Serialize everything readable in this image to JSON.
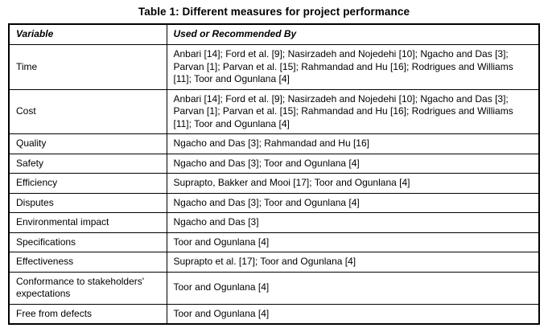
{
  "title": "Table 1: Different measures for project performance",
  "table": {
    "headers": [
      "Variable",
      "Used or Recommended By"
    ],
    "rows": [
      {
        "variable": "Time",
        "sources": "Anbari [14]; Ford et al. [9]; Nasirzadeh and Nojedehi [10]; Ngacho and Das [3]; Parvan [1]; Parvan et al. [15]; Rahmandad and Hu [16]; Rodrigues and Williams [11]; Toor and Ogunlana [4]"
      },
      {
        "variable": "Cost",
        "sources": "Anbari [14]; Ford et al. [9]; Nasirzadeh and Nojedehi [10]; Ngacho and Das [3]; Parvan [1]; Parvan et al. [15]; Rahmandad and Hu [16]; Rodrigues and Williams [11]; Toor and Ogunlana [4]"
      },
      {
        "variable": "Quality",
        "sources": "Ngacho and Das [3]; Rahmandad and Hu [16]"
      },
      {
        "variable": "Safety",
        "sources": "Ngacho and Das [3]; Toor and Ogunlana [4]"
      },
      {
        "variable": "Efficiency",
        "sources": "Suprapto, Bakker and Mooi [17]; Toor and Ogunlana [4]"
      },
      {
        "variable": "Disputes",
        "sources": "Ngacho and Das [3]; Toor and Ogunlana [4]"
      },
      {
        "variable": "Environmental impact",
        "sources": "Ngacho and Das [3]"
      },
      {
        "variable": "Specifications",
        "sources": "Toor and Ogunlana [4]"
      },
      {
        "variable": "Effectiveness",
        "sources": "Suprapto et al. [17]; Toor and Ogunlana [4]"
      },
      {
        "variable": "Conformance to stakeholders' expectations",
        "sources": "Toor and Ogunlana [4]"
      },
      {
        "variable": "Free from defects",
        "sources": "Toor and Ogunlana [4]"
      }
    ]
  }
}
